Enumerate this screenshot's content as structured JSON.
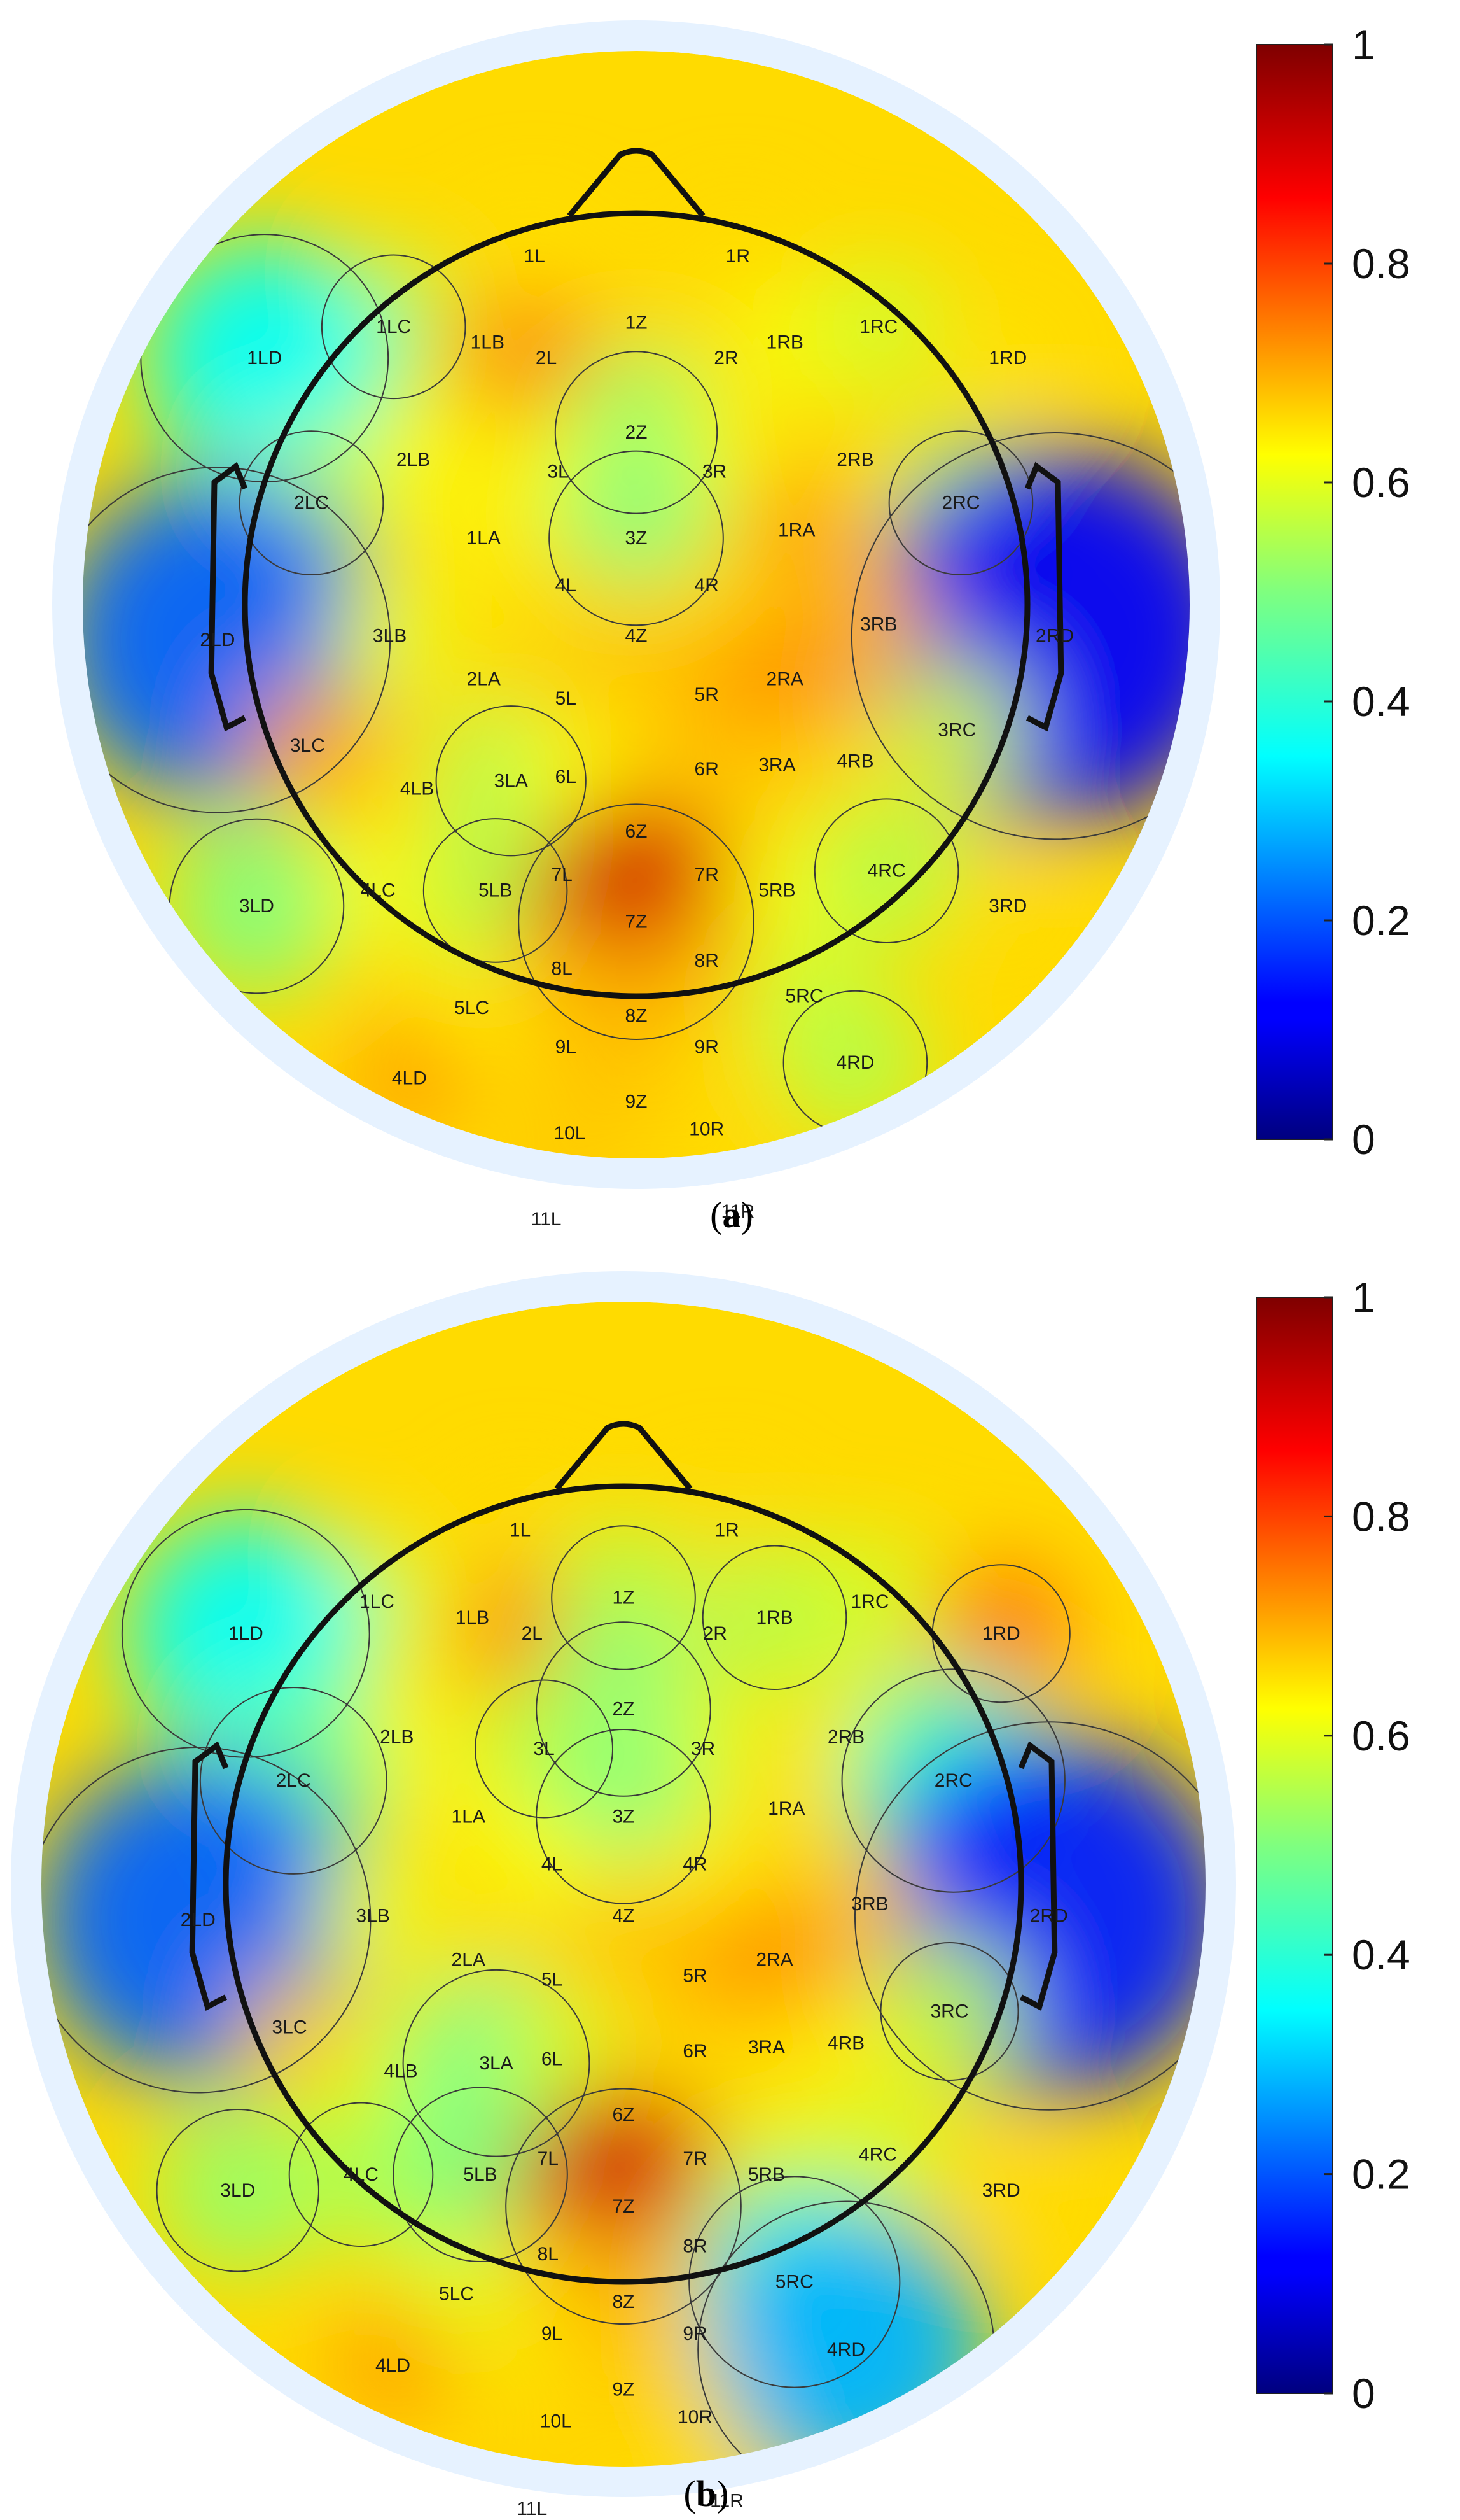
{
  "chart_data": [
    {
      "type": "heatmap",
      "subtype": "topographic-scalp-map",
      "caption_letter": "a",
      "colormap": "jet",
      "colorbar": {
        "min": 0,
        "max": 1,
        "ticks": [
          "0",
          "0.2",
          "0.4",
          "0.6",
          "0.8",
          "1"
        ]
      },
      "electrodes": [
        {
          "name": "1L",
          "value": 0.65
        },
        {
          "name": "1R",
          "value": 0.66
        },
        {
          "name": "1LC",
          "value": 0.55
        },
        {
          "name": "1LB",
          "value": 0.7
        },
        {
          "name": "2L",
          "value": 0.74
        },
        {
          "name": "1Z",
          "value": 0.66
        },
        {
          "name": "2R",
          "value": 0.66
        },
        {
          "name": "1RB",
          "value": 0.62
        },
        {
          "name": "1RC",
          "value": 0.58
        },
        {
          "name": "1RD",
          "value": 0.65
        },
        {
          "name": "1LD",
          "value": 0.38
        },
        {
          "name": "2Z",
          "value": 0.52
        },
        {
          "name": "3L",
          "value": 0.62
        },
        {
          "name": "3R",
          "value": 0.62
        },
        {
          "name": "2LB",
          "value": 0.62
        },
        {
          "name": "2RB",
          "value": 0.66
        },
        {
          "name": "2LC",
          "value": 0.55
        },
        {
          "name": "2RC",
          "value": 0.55
        },
        {
          "name": "3Z",
          "value": 0.5
        },
        {
          "name": "1LA",
          "value": 0.64
        },
        {
          "name": "1RA",
          "value": 0.72
        },
        {
          "name": "4L",
          "value": 0.66
        },
        {
          "name": "4R",
          "value": 0.66
        },
        {
          "name": "2LD",
          "value": 0.22
        },
        {
          "name": "2RD",
          "value": 0.12
        },
        {
          "name": "3LB",
          "value": 0.6
        },
        {
          "name": "4Z",
          "value": 0.68
        },
        {
          "name": "3RB",
          "value": 0.7
        },
        {
          "name": "2LA",
          "value": 0.66
        },
        {
          "name": "5L",
          "value": 0.68
        },
        {
          "name": "5R",
          "value": 0.7
        },
        {
          "name": "2RA",
          "value": 0.74
        },
        {
          "name": "3LC",
          "value": 0.72
        },
        {
          "name": "3RC",
          "value": 0.58
        },
        {
          "name": "4LB",
          "value": 0.66
        },
        {
          "name": "3LA",
          "value": 0.54
        },
        {
          "name": "6L",
          "value": 0.62
        },
        {
          "name": "6R",
          "value": 0.68
        },
        {
          "name": "3RA",
          "value": 0.68
        },
        {
          "name": "4RB",
          "value": 0.66
        },
        {
          "name": "6Z",
          "value": 0.7
        },
        {
          "name": "7L",
          "value": 0.68
        },
        {
          "name": "7R",
          "value": 0.7
        },
        {
          "name": "3LD",
          "value": 0.5
        },
        {
          "name": "4LC",
          "value": 0.62
        },
        {
          "name": "5LB",
          "value": 0.55
        },
        {
          "name": "7Z",
          "value": 0.92
        },
        {
          "name": "5RB",
          "value": 0.62
        },
        {
          "name": "4RC",
          "value": 0.55
        },
        {
          "name": "3RD",
          "value": 0.66
        },
        {
          "name": "8L",
          "value": 0.7
        },
        {
          "name": "8R",
          "value": 0.7
        },
        {
          "name": "5LC",
          "value": 0.64
        },
        {
          "name": "8Z",
          "value": 0.7
        },
        {
          "name": "5RC",
          "value": 0.58
        },
        {
          "name": "9L",
          "value": 0.68
        },
        {
          "name": "9R",
          "value": 0.66
        },
        {
          "name": "4LD",
          "value": 0.72
        },
        {
          "name": "4RD",
          "value": 0.55
        },
        {
          "name": "9Z",
          "value": 0.68
        },
        {
          "name": "10L",
          "value": 0.68
        },
        {
          "name": "10R",
          "value": 0.66
        },
        {
          "name": "11L",
          "value": 0.68
        },
        {
          "name": "11R",
          "value": 0.66
        }
      ]
    },
    {
      "type": "heatmap",
      "subtype": "topographic-scalp-map",
      "caption_letter": "b",
      "colormap": "jet",
      "colorbar": {
        "min": 0,
        "max": 1,
        "ticks": [
          "0",
          "0.2",
          "0.4",
          "0.6",
          "0.8",
          "1"
        ]
      },
      "electrodes": [
        {
          "name": "1L",
          "value": 0.66
        },
        {
          "name": "1R",
          "value": 0.66
        },
        {
          "name": "1LC",
          "value": 0.58
        },
        {
          "name": "1LB",
          "value": 0.66
        },
        {
          "name": "2L",
          "value": 0.75
        },
        {
          "name": "1Z",
          "value": 0.55
        },
        {
          "name": "2R",
          "value": 0.66
        },
        {
          "name": "1RB",
          "value": 0.55
        },
        {
          "name": "1RC",
          "value": 0.58
        },
        {
          "name": "1RD",
          "value": 0.76
        },
        {
          "name": "1LD",
          "value": 0.38
        },
        {
          "name": "2Z",
          "value": 0.5
        },
        {
          "name": "3L",
          "value": 0.56
        },
        {
          "name": "3R",
          "value": 0.6
        },
        {
          "name": "2LB",
          "value": 0.62
        },
        {
          "name": "2RB",
          "value": 0.64
        },
        {
          "name": "2LC",
          "value": 0.48
        },
        {
          "name": "2RC",
          "value": 0.42
        },
        {
          "name": "3Z",
          "value": 0.5
        },
        {
          "name": "1LA",
          "value": 0.64
        },
        {
          "name": "1RA",
          "value": 0.66
        },
        {
          "name": "4L",
          "value": 0.62
        },
        {
          "name": "4R",
          "value": 0.64
        },
        {
          "name": "2LD",
          "value": 0.22
        },
        {
          "name": "2RD",
          "value": 0.15
        },
        {
          "name": "3LB",
          "value": 0.6
        },
        {
          "name": "4Z",
          "value": 0.68
        },
        {
          "name": "3RB",
          "value": 0.68
        },
        {
          "name": "2LA",
          "value": 0.66
        },
        {
          "name": "5L",
          "value": 0.68
        },
        {
          "name": "5R",
          "value": 0.7
        },
        {
          "name": "2RA",
          "value": 0.74
        },
        {
          "name": "3LC",
          "value": 0.68
        },
        {
          "name": "3RC",
          "value": 0.56
        },
        {
          "name": "4LB",
          "value": 0.6
        },
        {
          "name": "3LA",
          "value": 0.48
        },
        {
          "name": "6L",
          "value": 0.58
        },
        {
          "name": "6R",
          "value": 0.66
        },
        {
          "name": "3RA",
          "value": 0.66
        },
        {
          "name": "4RB",
          "value": 0.64
        },
        {
          "name": "6Z",
          "value": 0.68
        },
        {
          "name": "7L",
          "value": 0.66
        },
        {
          "name": "7R",
          "value": 0.68
        },
        {
          "name": "3LD",
          "value": 0.52
        },
        {
          "name": "4LC",
          "value": 0.55
        },
        {
          "name": "5LB",
          "value": 0.5
        },
        {
          "name": "7Z",
          "value": 0.92
        },
        {
          "name": "5RB",
          "value": 0.6
        },
        {
          "name": "4RC",
          "value": 0.58
        },
        {
          "name": "3RD",
          "value": 0.66
        },
        {
          "name": "8L",
          "value": 0.68
        },
        {
          "name": "8R",
          "value": 0.68
        },
        {
          "name": "5LC",
          "value": 0.6
        },
        {
          "name": "8Z",
          "value": 0.7
        },
        {
          "name": "5RC",
          "value": 0.44
        },
        {
          "name": "9L",
          "value": 0.66
        },
        {
          "name": "9R",
          "value": 0.66
        },
        {
          "name": "4LD",
          "value": 0.72
        },
        {
          "name": "4RD",
          "value": 0.3
        },
        {
          "name": "9Z",
          "value": 0.68
        },
        {
          "name": "10L",
          "value": 0.66
        },
        {
          "name": "10R",
          "value": 0.66
        },
        {
          "name": "11L",
          "value": 0.68
        },
        {
          "name": "11R",
          "value": 0.66
        }
      ]
    }
  ]
}
